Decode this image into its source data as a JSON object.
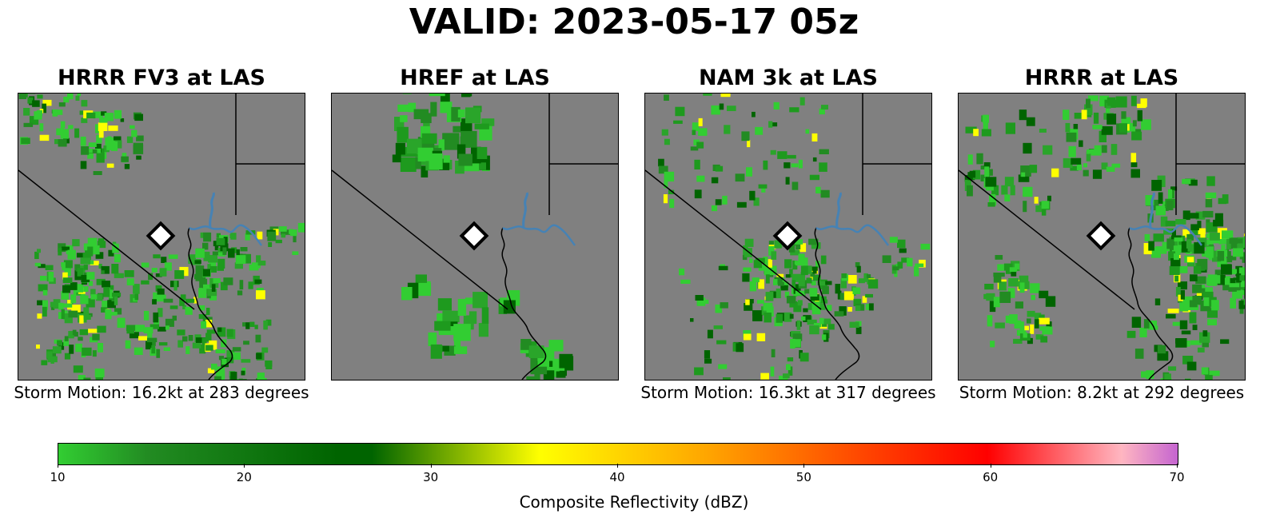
{
  "title": "VALID: 2023-05-17 05z",
  "panels": [
    {
      "title": "HRRR FV3 at LAS",
      "storm_motion": "Storm Motion: 16.2kt at 283 degrees"
    },
    {
      "title": "HREF at LAS",
      "storm_motion": ""
    },
    {
      "title": "NAM 3k at LAS",
      "storm_motion": "Storm Motion: 16.3kt at 317 degrees"
    },
    {
      "title": "HRRR at LAS",
      "storm_motion": "Storm Motion: 8.2kt at 292 degrees"
    }
  ],
  "colorbar": {
    "label": "Composite Reflectivity (dBZ)",
    "ticks": [
      "10",
      "20",
      "30",
      "40",
      "50",
      "60",
      "70"
    ],
    "range": [
      10,
      70
    ]
  },
  "colors": {
    "map_background": "#808080",
    "water": "#4682b4",
    "echo_light": "#32cd32",
    "echo_dark": "#006400",
    "echo_high": "#ffff00",
    "station_marker": "#ffffff"
  },
  "icons": {
    "station": "diamond-marker"
  }
}
